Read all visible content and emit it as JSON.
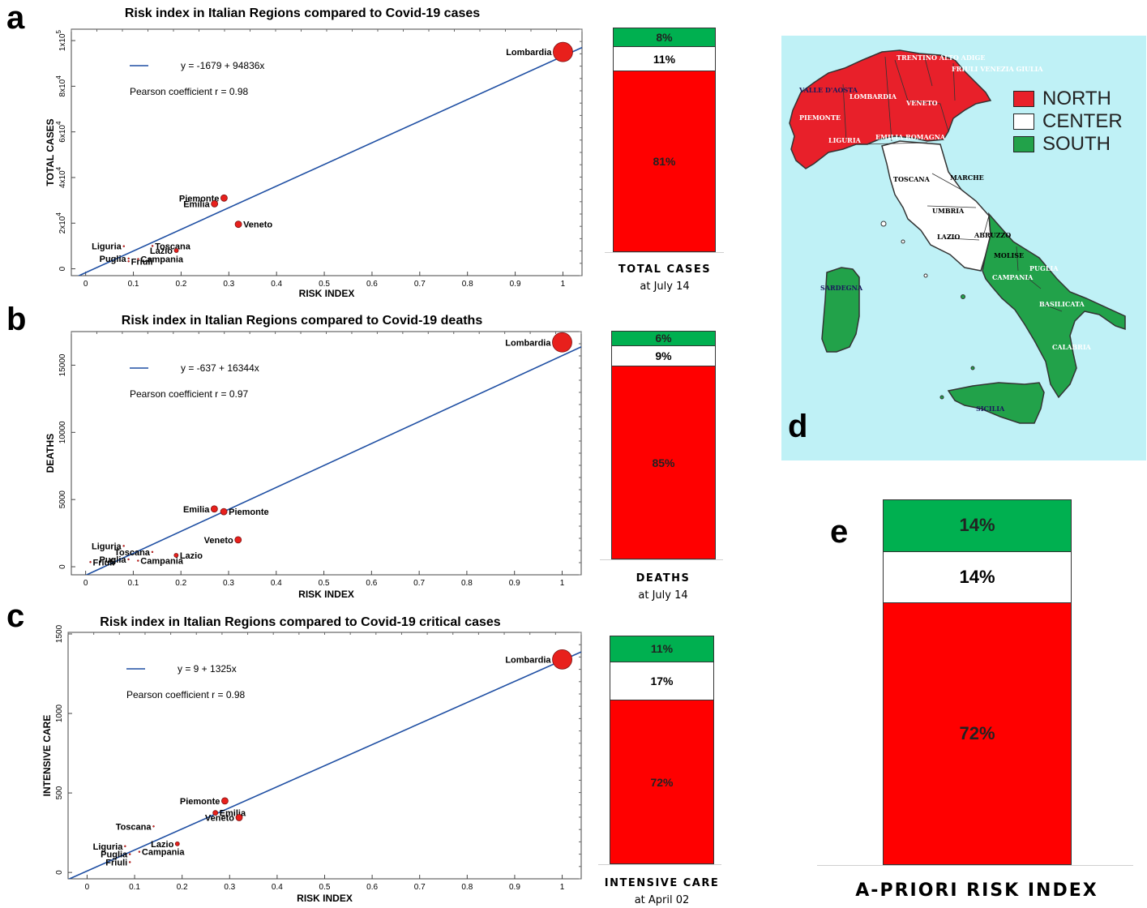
{
  "panels": {
    "a": "a",
    "b": "b",
    "c": "c",
    "d": "d",
    "e": "e"
  },
  "chart_data": [
    {
      "id": "a",
      "type": "scatter",
      "title": "Risk index in Italian Regions compared to Covid-19 cases",
      "xlabel": "RISK INDEX",
      "ylabel": "TOTAL CASES",
      "xlim": [
        -0.03,
        1.04
      ],
      "ylim": [
        -3000,
        105000
      ],
      "x_ticks": [
        "0",
        "0.1",
        "0.2",
        "0.3",
        "0.4",
        "0.5",
        "0.6",
        "0.7",
        "0.8",
        "0.9",
        "1"
      ],
      "y_ticks": [
        {
          "value": 0,
          "label": "0"
        },
        {
          "value": 20000,
          "label": "2x10",
          "exp": "4"
        },
        {
          "value": 40000,
          "label": "4x10",
          "exp": "4"
        },
        {
          "value": 60000,
          "label": "6x10",
          "exp": "4"
        },
        {
          "value": 80000,
          "label": "8x10",
          "exp": "4"
        },
        {
          "value": 100000,
          "label": "1x10",
          "exp": "5"
        }
      ],
      "fit": {
        "intercept": -1679,
        "slope": 94836
      },
      "equation": "y = -1679 + 94836x",
      "pearson": "Pearson coefficient r = 0.98",
      "points": [
        {
          "name": "Lombardia",
          "x": 1.0,
          "y": 95000,
          "size": 12,
          "label_side": "left"
        },
        {
          "name": "Piemonte",
          "x": 0.29,
          "y": 31000,
          "size": 4,
          "label_side": "left"
        },
        {
          "name": "Emilia",
          "x": 0.27,
          "y": 28500,
          "size": 4,
          "label_side": "left"
        },
        {
          "name": "Veneto",
          "x": 0.32,
          "y": 19500,
          "size": 4,
          "label_side": "right"
        },
        {
          "name": "Toscana",
          "x": 0.14,
          "y": 10000,
          "size": 1,
          "label_side": "right"
        },
        {
          "name": "Lazio",
          "x": 0.19,
          "y": 8000,
          "size": 2.5,
          "label_side": "left"
        },
        {
          "name": "Liguria",
          "x": 0.08,
          "y": 9900,
          "size": 1,
          "label_side": "left"
        },
        {
          "name": "Friuli",
          "x": 0.09,
          "y": 3300,
          "size": 1,
          "label_side": "right"
        },
        {
          "name": "Puglia",
          "x": 0.09,
          "y": 4500,
          "size": 1,
          "label_side": "left"
        },
        {
          "name": "Campania",
          "x": 0.11,
          "y": 4300,
          "size": 1,
          "label_side": "right"
        }
      ]
    },
    {
      "id": "b",
      "type": "scatter",
      "title": "Risk index in Italian Regions compared to Covid-19 deaths",
      "xlabel": "RISK INDEX",
      "ylabel": "DEATHS",
      "xlim": [
        -0.03,
        1.04
      ],
      "ylim": [
        -600,
        17500
      ],
      "x_ticks": [
        "0",
        "0.1",
        "0.2",
        "0.3",
        "0.4",
        "0.5",
        "0.6",
        "0.7",
        "0.8",
        "0.9",
        "1"
      ],
      "y_ticks": [
        {
          "value": 0,
          "label": "0"
        },
        {
          "value": 5000,
          "label": "5000"
        },
        {
          "value": 10000,
          "label": "10000"
        },
        {
          "value": 15000,
          "label": "15000"
        }
      ],
      "fit": {
        "intercept": -637,
        "slope": 16344
      },
      "equation": "y =  -637 + 16344x",
      "pearson": "Pearson coefficient r = 0.97",
      "points": [
        {
          "name": "Lombardia",
          "x": 1.0,
          "y": 16700,
          "size": 12,
          "label_side": "left"
        },
        {
          "name": "Emilia",
          "x": 0.27,
          "y": 4300,
          "size": 4,
          "label_side": "left"
        },
        {
          "name": "Piemonte",
          "x": 0.29,
          "y": 4100,
          "size": 4,
          "label_side": "right"
        },
        {
          "name": "Veneto",
          "x": 0.32,
          "y": 2000,
          "size": 4,
          "label_side": "left"
        },
        {
          "name": "Lazio",
          "x": 0.19,
          "y": 850,
          "size": 2.5,
          "label_side": "right"
        },
        {
          "name": "Toscana",
          "x": 0.14,
          "y": 1100,
          "size": 1,
          "label_side": "left"
        },
        {
          "name": "Liguria",
          "x": 0.08,
          "y": 1550,
          "size": 1,
          "label_side": "left"
        },
        {
          "name": "Puglia",
          "x": 0.09,
          "y": 550,
          "size": 1,
          "label_side": "left"
        },
        {
          "name": "Campania",
          "x": 0.11,
          "y": 450,
          "size": 1,
          "label_side": "right"
        },
        {
          "name": "Friuli",
          "x": 0.01,
          "y": 350,
          "size": 1,
          "label_side": "right"
        }
      ]
    },
    {
      "id": "c",
      "type": "scatter",
      "title": "Risk index in Italian Regions compared to Covid-19 critical cases",
      "xlabel": "RISK INDEX",
      "ylabel": "INTENSIVE CARE",
      "xlim": [
        -0.04,
        1.04
      ],
      "ylim": [
        -40,
        1510
      ],
      "x_ticks": [
        "0",
        "0.1",
        "0.2",
        "0.3",
        "0.4",
        "0.5",
        "0.6",
        "0.7",
        "0.8",
        "0.9",
        "1"
      ],
      "y_ticks": [
        {
          "value": 0,
          "label": "0"
        },
        {
          "value": 500,
          "label": "500"
        },
        {
          "value": 1000,
          "label": "1000"
        },
        {
          "value": 1500,
          "label": "1500"
        }
      ],
      "fit": {
        "intercept": 9,
        "slope": 1325
      },
      "equation": "y =   9 + 1325x",
      "pearson": "Pearson coefficient r = 0.98",
      "points": [
        {
          "name": "Lombardia",
          "x": 1.0,
          "y": 1340,
          "size": 12,
          "label_side": "left"
        },
        {
          "name": "Piemonte",
          "x": 0.29,
          "y": 450,
          "size": 4,
          "label_side": "left"
        },
        {
          "name": "Emilia",
          "x": 0.27,
          "y": 375,
          "size": 3,
          "label_side": "right"
        },
        {
          "name": "Veneto",
          "x": 0.32,
          "y": 345,
          "size": 4,
          "label_side": "left"
        },
        {
          "name": "Toscana",
          "x": 0.14,
          "y": 290,
          "size": 1,
          "label_side": "left"
        },
        {
          "name": "Lazio",
          "x": 0.19,
          "y": 180,
          "size": 2.5,
          "label_side": "left"
        },
        {
          "name": "Campania",
          "x": 0.11,
          "y": 130,
          "size": 1,
          "label_side": "right"
        },
        {
          "name": "Liguria",
          "x": 0.08,
          "y": 165,
          "size": 1,
          "label_side": "left"
        },
        {
          "name": "Puglia",
          "x": 0.09,
          "y": 115,
          "size": 1,
          "label_side": "left"
        },
        {
          "name": "Friuli",
          "x": 0.09,
          "y": 65,
          "size": 1,
          "label_side": "left"
        }
      ]
    },
    {
      "id": "bar-a",
      "type": "bar",
      "stacked": true,
      "segments": [
        {
          "region": "SOUTH",
          "value": 8,
          "label": "8%"
        },
        {
          "region": "CENTER",
          "value": 11,
          "label": "11%"
        },
        {
          "region": "NORTH",
          "value": 81,
          "label": "81%"
        }
      ],
      "caption": "TOTAL CASES",
      "subcaption": "at July 14"
    },
    {
      "id": "bar-b",
      "type": "bar",
      "stacked": true,
      "segments": [
        {
          "region": "SOUTH",
          "value": 6,
          "label": "6%"
        },
        {
          "region": "CENTER",
          "value": 9,
          "label": "9%"
        },
        {
          "region": "NORTH",
          "value": 85,
          "label": "85%"
        }
      ],
      "caption": "DEATHS",
      "subcaption": "at July 14"
    },
    {
      "id": "bar-c",
      "type": "bar",
      "stacked": true,
      "segments": [
        {
          "region": "SOUTH",
          "value": 11,
          "label": "11%"
        },
        {
          "region": "CENTER",
          "value": 17,
          "label": "17%"
        },
        {
          "region": "NORTH",
          "value": 72,
          "label": "72%"
        }
      ],
      "caption": "INTENSIVE CARE",
      "subcaption": "at April 02"
    },
    {
      "id": "bar-e",
      "type": "bar",
      "stacked": true,
      "segments": [
        {
          "region": "SOUTH",
          "value": 14,
          "label": "14%"
        },
        {
          "region": "CENTER",
          "value": 14,
          "label": "14%"
        },
        {
          "region": "NORTH",
          "value": 72,
          "label": "72%"
        }
      ],
      "caption": "A-PRIORI RISK INDEX",
      "subcaption": ""
    }
  ],
  "map": {
    "legend": [
      {
        "label": "NORTH",
        "color": "#e8202a"
      },
      {
        "label": "CENTER",
        "color": "#ffffff"
      },
      {
        "label": "SOUTH",
        "color": "#22a24a"
      }
    ],
    "region_labels": [
      "VALLE D'AOSTA",
      "PIEMONTE",
      "LOMBARDIA",
      "TRENTINO ALTO ADIGE",
      "FRIULI VENEZIA GIULIA",
      "VENETO",
      "LIGURIA",
      "EMILIA ROMAGNA",
      "TOSCANA",
      "MARCHE",
      "UMBRIA",
      "LAZIO",
      "ABRUZZO",
      "MOLISE",
      "PUGLIA",
      "CAMPANIA",
      "BASILICATA",
      "CALABRIA",
      "SARDEGNA",
      "SICILIA"
    ]
  },
  "colors": {
    "north": "#ff0000",
    "center": "#ffffff",
    "south": "#00b050",
    "fit_line": "#1f4fa3",
    "point": "#e8201c",
    "map_bg": "#bff1f6",
    "map_north": "#e8202a",
    "map_south": "#22a24a"
  }
}
